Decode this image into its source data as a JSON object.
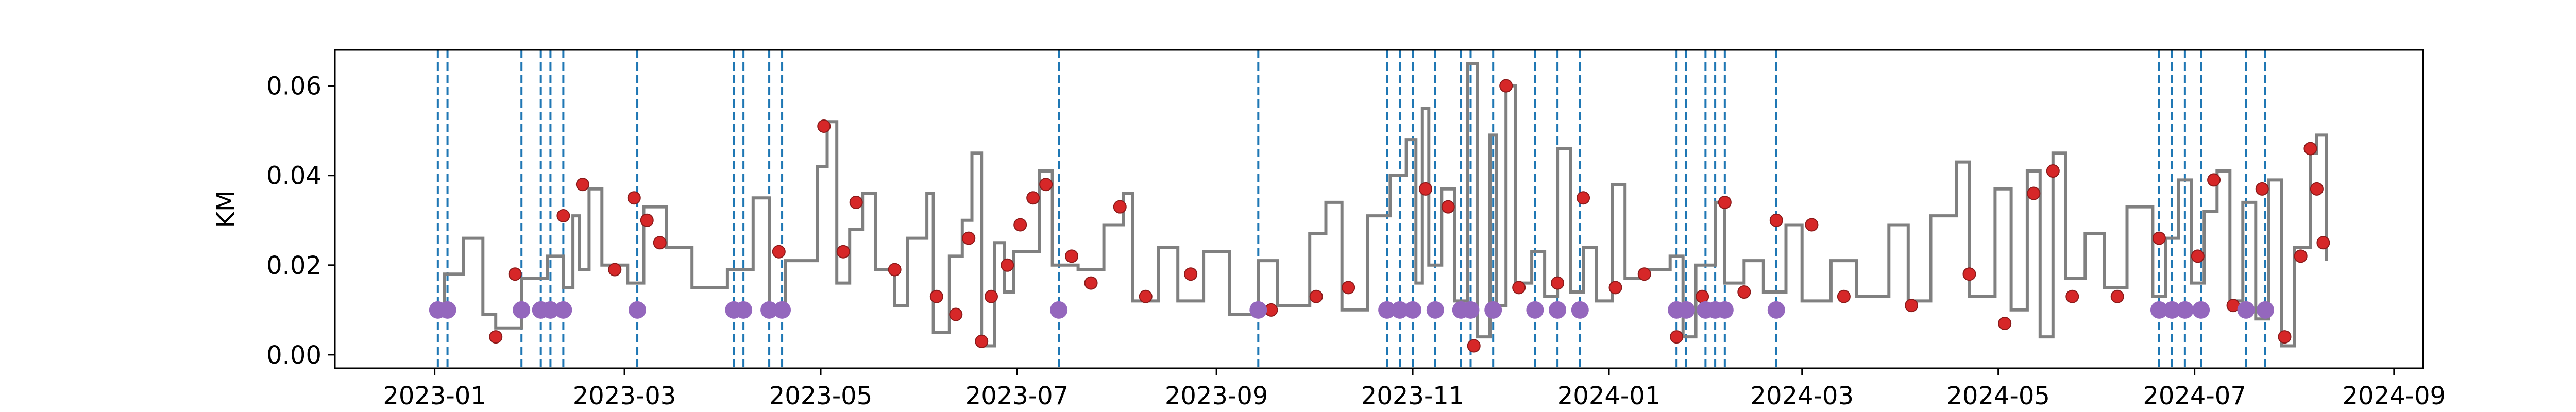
{
  "chart_data": {
    "type": "line",
    "title": "",
    "xlabel": "",
    "ylabel": "KM",
    "grid": false,
    "legend": "none",
    "xlim": [
      "2022-12-01",
      "2024-09-10"
    ],
    "ylim": [
      -0.003,
      0.068
    ],
    "x_ticks": [
      "2023-01",
      "2023-03",
      "2023-05",
      "2023-07",
      "2023-09",
      "2023-11",
      "2024-01",
      "2024-03",
      "2024-05",
      "2024-07",
      "2024-09"
    ],
    "y_ticks": [
      "0.00",
      "0.02",
      "0.04",
      "0.06"
    ],
    "colors": {
      "line": "#808080",
      "points": "#d62728",
      "events": "#9467bd",
      "vlines": "#1f77b4"
    },
    "series": [
      {
        "role": "step-line",
        "points": [
          [
            "2023-01-01",
            0.01
          ],
          [
            "2023-01-04",
            0.018
          ],
          [
            "2023-01-10",
            0.026
          ],
          [
            "2023-01-16",
            0.009
          ],
          [
            "2023-01-20",
            0.006
          ],
          [
            "2023-01-28",
            0.017
          ],
          [
            "2023-02-05",
            0.022
          ],
          [
            "2023-02-10",
            0.015
          ],
          [
            "2023-02-13",
            0.031
          ],
          [
            "2023-02-15",
            0.019
          ],
          [
            "2023-02-18",
            0.037
          ],
          [
            "2023-02-22",
            0.02
          ],
          [
            "2023-03-02",
            0.016
          ],
          [
            "2023-03-07",
            0.033
          ],
          [
            "2023-03-14",
            0.024
          ],
          [
            "2023-03-22",
            0.015
          ],
          [
            "2023-04-02",
            0.019
          ],
          [
            "2023-04-10",
            0.035
          ],
          [
            "2023-04-15",
            0.01
          ],
          [
            "2023-04-20",
            0.021
          ],
          [
            "2023-04-30",
            0.042
          ],
          [
            "2023-05-03",
            0.052
          ],
          [
            "2023-05-06",
            0.016
          ],
          [
            "2023-05-10",
            0.028
          ],
          [
            "2023-05-14",
            0.036
          ],
          [
            "2023-05-18",
            0.019
          ],
          [
            "2023-05-24",
            0.011
          ],
          [
            "2023-05-28",
            0.026
          ],
          [
            "2023-06-03",
            0.036
          ],
          [
            "2023-06-05",
            0.005
          ],
          [
            "2023-06-10",
            0.022
          ],
          [
            "2023-06-14",
            0.03
          ],
          [
            "2023-06-17",
            0.045
          ],
          [
            "2023-06-20",
            0.002
          ],
          [
            "2023-06-24",
            0.025
          ],
          [
            "2023-06-27",
            0.014
          ],
          [
            "2023-06-30",
            0.023
          ],
          [
            "2023-07-08",
            0.041
          ],
          [
            "2023-07-12",
            0.02
          ],
          [
            "2023-07-20",
            0.019
          ],
          [
            "2023-07-28",
            0.029
          ],
          [
            "2023-08-03",
            0.036
          ],
          [
            "2023-08-06",
            0.012
          ],
          [
            "2023-08-14",
            0.024
          ],
          [
            "2023-08-20",
            0.012
          ],
          [
            "2023-08-28",
            0.023
          ],
          [
            "2023-09-05",
            0.009
          ],
          [
            "2023-09-14",
            0.021
          ],
          [
            "2023-09-20",
            0.011
          ],
          [
            "2023-09-30",
            0.027
          ],
          [
            "2023-10-05",
            0.034
          ],
          [
            "2023-10-10",
            0.01
          ],
          [
            "2023-10-18",
            0.031
          ],
          [
            "2023-10-25",
            0.04
          ],
          [
            "2023-10-30",
            0.048
          ],
          [
            "2023-11-02",
            0.016
          ],
          [
            "2023-11-04",
            0.055
          ],
          [
            "2023-11-06",
            0.02
          ],
          [
            "2023-11-10",
            0.037
          ],
          [
            "2023-11-14",
            0.012
          ],
          [
            "2023-11-18",
            0.065
          ],
          [
            "2023-11-21",
            0.004
          ],
          [
            "2023-11-25",
            0.049
          ],
          [
            "2023-11-27",
            0.011
          ],
          [
            "2023-11-30",
            0.06
          ],
          [
            "2023-12-03",
            0.016
          ],
          [
            "2023-12-08",
            0.023
          ],
          [
            "2023-12-12",
            0.013
          ],
          [
            "2023-12-16",
            0.046
          ],
          [
            "2023-12-20",
            0.014
          ],
          [
            "2023-12-24",
            0.024
          ],
          [
            "2023-12-28",
            0.012
          ],
          [
            "2024-01-02",
            0.038
          ],
          [
            "2024-01-06",
            0.017
          ],
          [
            "2024-01-12",
            0.019
          ],
          [
            "2024-01-20",
            0.022
          ],
          [
            "2024-01-24",
            0.004
          ],
          [
            "2024-01-28",
            0.02
          ],
          [
            "2024-02-03",
            0.034
          ],
          [
            "2024-02-06",
            0.016
          ],
          [
            "2024-02-12",
            0.021
          ],
          [
            "2024-02-18",
            0.014
          ],
          [
            "2024-02-25",
            0.029
          ],
          [
            "2024-03-01",
            0.012
          ],
          [
            "2024-03-10",
            0.021
          ],
          [
            "2024-03-18",
            0.013
          ],
          [
            "2024-03-28",
            0.029
          ],
          [
            "2024-04-03",
            0.012
          ],
          [
            "2024-04-10",
            0.031
          ],
          [
            "2024-04-18",
            0.043
          ],
          [
            "2024-04-22",
            0.013
          ],
          [
            "2024-04-30",
            0.037
          ],
          [
            "2024-05-05",
            0.01
          ],
          [
            "2024-05-10",
            0.041
          ],
          [
            "2024-05-14",
            0.004
          ],
          [
            "2024-05-18",
            0.045
          ],
          [
            "2024-05-22",
            0.017
          ],
          [
            "2024-05-28",
            0.027
          ],
          [
            "2024-06-03",
            0.015
          ],
          [
            "2024-06-10",
            0.033
          ],
          [
            "2024-06-18",
            0.013
          ],
          [
            "2024-06-22",
            0.026
          ],
          [
            "2024-06-26",
            0.039
          ],
          [
            "2024-06-30",
            0.016
          ],
          [
            "2024-07-04",
            0.032
          ],
          [
            "2024-07-08",
            0.041
          ],
          [
            "2024-07-12",
            0.012
          ],
          [
            "2024-07-16",
            0.034
          ],
          [
            "2024-07-20",
            0.008
          ],
          [
            "2024-07-24",
            0.039
          ],
          [
            "2024-07-28",
            0.002
          ],
          [
            "2024-08-01",
            0.024
          ],
          [
            "2024-08-06",
            0.045
          ],
          [
            "2024-08-08",
            0.049
          ],
          [
            "2024-08-11",
            0.021
          ]
        ]
      },
      {
        "role": "observed-points",
        "points": [
          [
            "2023-01-20",
            0.004
          ],
          [
            "2023-01-26",
            0.018
          ],
          [
            "2023-02-10",
            0.031
          ],
          [
            "2023-02-16",
            0.038
          ],
          [
            "2023-02-26",
            0.019
          ],
          [
            "2023-03-04",
            0.035
          ],
          [
            "2023-03-08",
            0.03
          ],
          [
            "2023-03-12",
            0.025
          ],
          [
            "2023-04-18",
            0.023
          ],
          [
            "2023-05-02",
            0.051
          ],
          [
            "2023-05-08",
            0.023
          ],
          [
            "2023-05-12",
            0.034
          ],
          [
            "2023-05-24",
            0.019
          ],
          [
            "2023-06-06",
            0.013
          ],
          [
            "2023-06-12",
            0.009
          ],
          [
            "2023-06-16",
            0.026
          ],
          [
            "2023-06-20",
            0.003
          ],
          [
            "2023-06-23",
            0.013
          ],
          [
            "2023-06-28",
            0.02
          ],
          [
            "2023-07-02",
            0.029
          ],
          [
            "2023-07-06",
            0.035
          ],
          [
            "2023-07-10",
            0.038
          ],
          [
            "2023-07-18",
            0.022
          ],
          [
            "2023-07-24",
            0.016
          ],
          [
            "2023-08-02",
            0.033
          ],
          [
            "2023-08-10",
            0.013
          ],
          [
            "2023-08-24",
            0.018
          ],
          [
            "2023-09-18",
            0.01
          ],
          [
            "2023-10-02",
            0.013
          ],
          [
            "2023-10-12",
            0.015
          ],
          [
            "2023-11-05",
            0.037
          ],
          [
            "2023-11-12",
            0.033
          ],
          [
            "2023-11-20",
            0.002
          ],
          [
            "2023-11-30",
            0.06
          ],
          [
            "2023-12-04",
            0.015
          ],
          [
            "2023-12-16",
            0.016
          ],
          [
            "2023-12-24",
            0.035
          ],
          [
            "2024-01-03",
            0.015
          ],
          [
            "2024-01-12",
            0.018
          ],
          [
            "2024-01-22",
            0.004
          ],
          [
            "2024-01-30",
            0.013
          ],
          [
            "2024-02-06",
            0.034
          ],
          [
            "2024-02-12",
            0.014
          ],
          [
            "2024-02-22",
            0.03
          ],
          [
            "2024-03-04",
            0.029
          ],
          [
            "2024-03-14",
            0.013
          ],
          [
            "2024-04-04",
            0.011
          ],
          [
            "2024-04-22",
            0.018
          ],
          [
            "2024-05-03",
            0.007
          ],
          [
            "2024-05-12",
            0.036
          ],
          [
            "2024-05-18",
            0.041
          ],
          [
            "2024-05-24",
            0.013
          ],
          [
            "2024-06-07",
            0.013
          ],
          [
            "2024-06-20",
            0.026
          ],
          [
            "2024-07-02",
            0.022
          ],
          [
            "2024-07-07",
            0.039
          ],
          [
            "2024-07-13",
            0.011
          ],
          [
            "2024-07-22",
            0.037
          ],
          [
            "2024-07-29",
            0.004
          ],
          [
            "2024-08-03",
            0.022
          ],
          [
            "2024-08-06",
            0.046
          ],
          [
            "2024-08-08",
            0.037
          ],
          [
            "2024-08-10",
            0.025
          ]
        ]
      },
      {
        "role": "events",
        "y": 0.01,
        "dates": [
          "2023-01-02",
          "2023-01-05",
          "2023-01-28",
          "2023-02-03",
          "2023-02-06",
          "2023-02-10",
          "2023-03-05",
          "2023-04-04",
          "2023-04-07",
          "2023-04-15",
          "2023-04-19",
          "2023-07-14",
          "2023-09-14",
          "2023-10-24",
          "2023-10-28",
          "2023-11-01",
          "2023-11-08",
          "2023-11-16",
          "2023-11-19",
          "2023-11-26",
          "2023-12-09",
          "2023-12-16",
          "2023-12-23",
          "2024-01-22",
          "2024-01-25",
          "2024-01-31",
          "2024-02-03",
          "2024-02-06",
          "2024-02-22",
          "2024-06-20",
          "2024-06-24",
          "2024-06-28",
          "2024-07-03",
          "2024-07-17",
          "2024-07-23"
        ]
      }
    ]
  }
}
